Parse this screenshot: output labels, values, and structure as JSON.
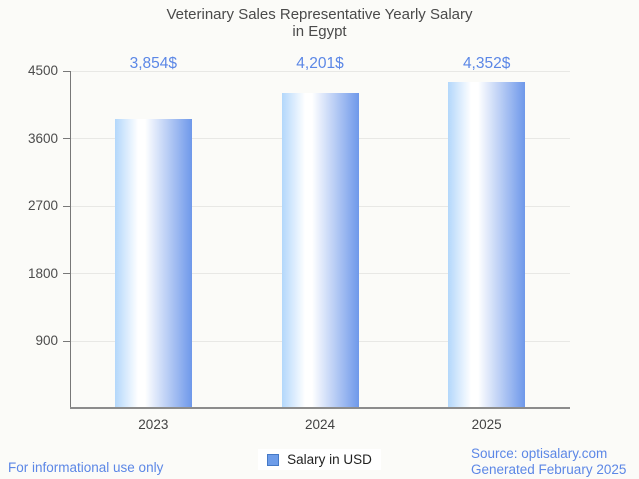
{
  "title": {
    "line1": "Veterinary Sales Representative Yearly Salary",
    "line2": "in Egypt"
  },
  "chart_data": {
    "type": "bar",
    "title": "Veterinary Sales Representative Yearly Salary in Egypt",
    "categories": [
      "2023",
      "2024",
      "2025"
    ],
    "values": [
      3854,
      4201,
      4352
    ],
    "value_labels": [
      "3,854$",
      "4,201$",
      "4,352$"
    ],
    "series": [
      {
        "name": "Salary in USD",
        "values": [
          3854,
          4201,
          4352
        ]
      }
    ],
    "xlabel": "",
    "ylabel": "",
    "ylim": [
      0,
      4500
    ],
    "y_ticks": [
      900,
      1800,
      2700,
      3600,
      4500
    ],
    "grid": true,
    "legend": {
      "label": "Salary in USD",
      "position": "bottom",
      "marker_color": "#6d9ce9"
    },
    "bar_gradient": [
      "#b3d7fb",
      "#ffffff",
      "#6e98ea"
    ]
  },
  "footer": {
    "disclaimer": "For informational use only",
    "source": "Source: optisalary.com",
    "generated": "Generated February 2025"
  },
  "colors": {
    "accent_blue": "#5c87e6",
    "text_gray": "#4a4a4a",
    "background": "#fbfbf8",
    "gridline": "#e8e8e5",
    "axis": "#787878"
  }
}
